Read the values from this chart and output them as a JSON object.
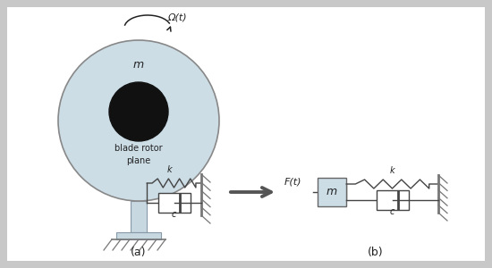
{
  "bg_color": "#c8c8c8",
  "panel_color": "#ffffff",
  "nacelle_color": "#ccdde6",
  "nacelle_edge": "#888888",
  "hub_color": "#111111",
  "tower_color": "#c8d8e0",
  "tower_edge": "#8899aa",
  "spring_color": "#444444",
  "damper_color": "#444444",
  "mass_color": "#ccdde6",
  "mass_edge": "#666666",
  "wall_color": "#777777",
  "arrow_color": "#555555",
  "text_color": "#222222",
  "label_a": "(a)",
  "label_b": "(b)",
  "omega_label": "Ω(t)",
  "blade_label": "blade rotor\nplane",
  "mass_label": "m",
  "force_label": "F(t)",
  "mass_b_label": "m",
  "k_label": "k",
  "c_label": "c"
}
